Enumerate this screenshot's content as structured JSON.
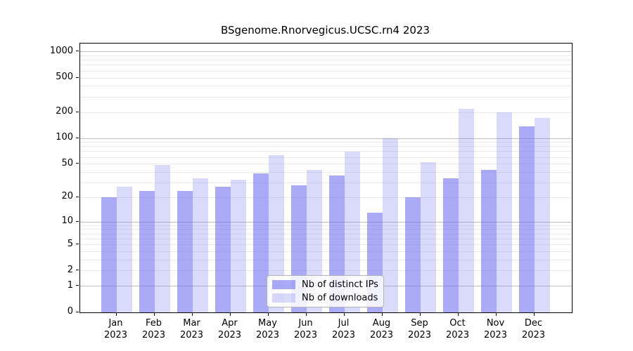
{
  "chart_data": {
    "type": "bar",
    "title": "BSgenome.Rnorvegicus.UCSC.rn4 2023",
    "categories": [
      "Jan 2023",
      "Feb 2023",
      "Mar 2023",
      "Apr 2023",
      "May 2023",
      "Jun 2023",
      "Jul 2023",
      "Aug 2023",
      "Sep 2023",
      "Oct 2023",
      "Nov 2023",
      "Dec 2023"
    ],
    "series": [
      {
        "name": "Nb of distinct IPs",
        "values": [
          20,
          24,
          24,
          27,
          39,
          28,
          37,
          13,
          20,
          34,
          43,
          137
        ],
        "color": "rgba(100,100,240,0.55)",
        "rendered_hex": "#aaaaf8"
      },
      {
        "name": "Nb of downloads",
        "values": [
          27,
          49,
          34,
          33,
          64,
          43,
          70,
          100,
          53,
          218,
          200,
          172
        ],
        "color": "rgba(100,100,240,0.24)",
        "rendered_hex": "#dadaf9"
      }
    ],
    "y_ticks": [
      0,
      1,
      2,
      5,
      10,
      20,
      50,
      100,
      200,
      500,
      1000
    ],
    "y_scale": "log10(value+1)",
    "ylim": [
      0,
      1200
    ],
    "xlabel": "",
    "ylabel": "",
    "grid": "horizontal, major at powers of 10, minor at 2-9 multiples",
    "legend_position": "inside bottom-center"
  },
  "colors": {
    "major_grid": "#c0c0c0",
    "minor_grid": "#ebebeb",
    "axis_frame": "#000000",
    "legend_border": "#b3b3b3",
    "legend_background": "rgba(255,255,255,0.85)"
  }
}
